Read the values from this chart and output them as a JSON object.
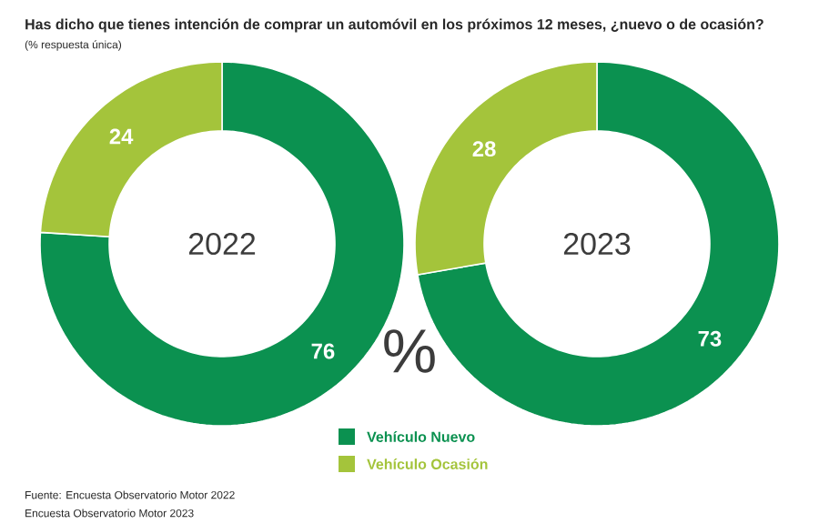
{
  "chart_data": [
    {
      "type": "donut",
      "title": "Has dicho que tienes intención de comprar un automóvil en los próximos 12 meses, ¿nuevo o de ocasión?",
      "subtitle": "(% respuesta única)",
      "categories": [
        "Vehículo Nuevo",
        "Vehículo Ocasión"
      ],
      "values": [
        76,
        24
      ],
      "colors": [
        "#0b9150",
        "#a4c43b"
      ],
      "data_labels": true,
      "legend": "bottom",
      "annotations": [
        "2022"
      ]
    },
    {
      "type": "donut",
      "categories": [
        null,
        null
      ],
      "values": [
        73,
        28
      ],
      "colors": [
        "#0b9150",
        "#a4c43b"
      ],
      "data_labels": true,
      "annotations": [
        "2023",
        "%",
        "Fuente: Encuesta Observatorio Motor 2022",
        "Encuesta Observatorio Motor 2023"
      ]
    }
  ]
}
